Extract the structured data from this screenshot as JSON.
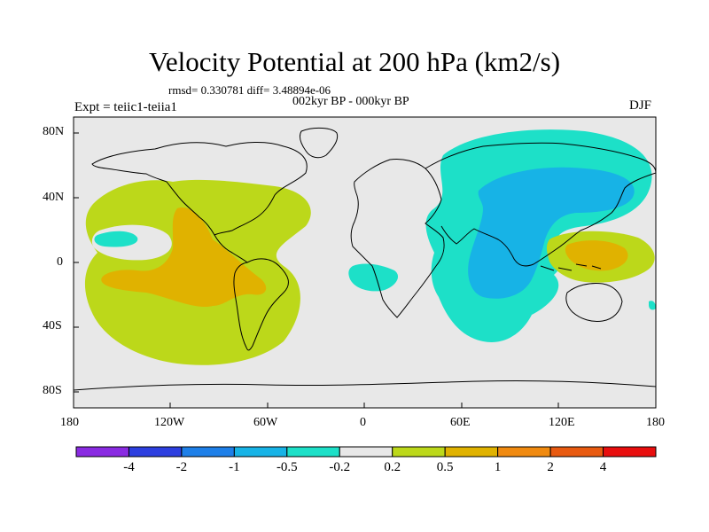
{
  "header": {
    "title": "Velocity Potential at 200 hPa (km2/s)",
    "stats": "rmsd= 0.330781 diff= 3.48894e-06",
    "period": "002kyr BP - 000kyr BP",
    "experiment": "Expt = teiic1-teiia1",
    "season": "DJF"
  },
  "map": {
    "background_color": "#e8e8e8",
    "coastline_color": "#000000",
    "y_tick_labels": [
      "80N",
      "40N",
      "0",
      "40S",
      "80S"
    ],
    "x_tick_labels": [
      "180",
      "120W",
      "60W",
      "0",
      "60E",
      "120E",
      "180"
    ]
  },
  "colorbar": {
    "colors": [
      "#8a2be2",
      "#2d3fe0",
      "#1e7fe8",
      "#17b3e6",
      "#1de0c8",
      "#e8e8e8",
      "#bcd81a",
      "#e0b200",
      "#f08a10",
      "#e85a10",
      "#e80e0e"
    ],
    "labels": [
      "-4",
      "-2",
      "-1",
      "-0.5",
      "-0.2",
      "0.2",
      "0.5",
      "1",
      "2",
      "4"
    ]
  },
  "fields": {
    "positive_light": "#bcd81a",
    "positive_mid": "#e0b200",
    "negative_light": "#1de0c8",
    "negative_mid": "#17b3e6"
  }
}
